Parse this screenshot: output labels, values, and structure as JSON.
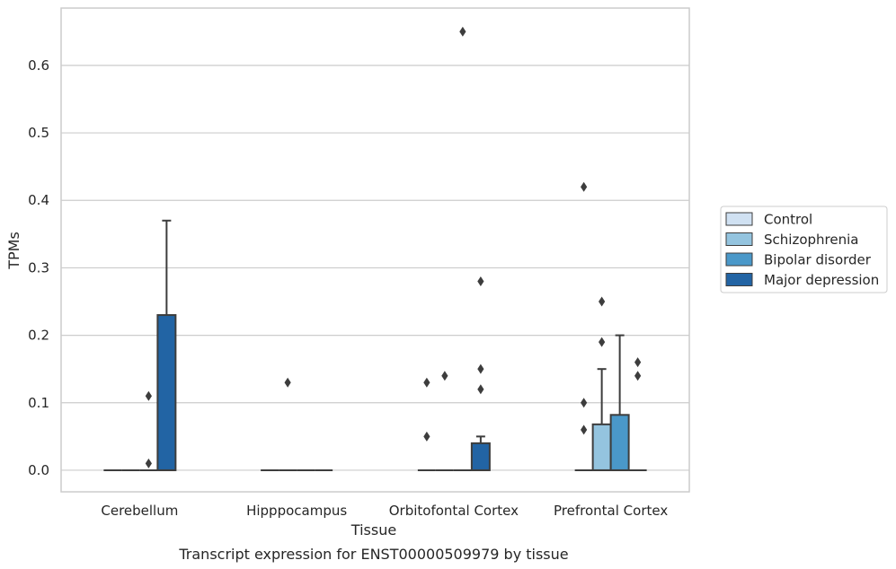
{
  "caption": "Transcript expression for ENST00000509979 by tissue",
  "chart_data": {
    "type": "box",
    "title": "",
    "xlabel": "Tissue",
    "ylabel": "TPMs",
    "ylim": [
      -0.032,
      0.685
    ],
    "yticks": [
      0.0,
      0.1,
      0.2,
      0.3,
      0.4,
      0.5,
      0.6
    ],
    "ytick_labels": [
      "0.0",
      "0.1",
      "0.2",
      "0.3",
      "0.4",
      "0.5",
      "0.6"
    ],
    "grid": true,
    "legend_position": "right",
    "categories": [
      "Cerebellum",
      "Hipppocampus",
      "Orbitofontal Cortex",
      "Prefrontal Cortex"
    ],
    "series": [
      {
        "name": "Control",
        "color": "#d0e1f2",
        "boxes": [
          {
            "q1": 0,
            "median": 0,
            "q3": 0,
            "whisker_low": 0,
            "whisker_high": 0,
            "outliers": []
          },
          {
            "q1": 0,
            "median": 0,
            "q3": 0,
            "whisker_low": 0,
            "whisker_high": 0,
            "outliers": []
          },
          {
            "q1": 0,
            "median": 0,
            "q3": 0,
            "whisker_low": 0,
            "whisker_high": 0,
            "outliers": [
              0.13,
              0.05
            ]
          },
          {
            "q1": 0,
            "median": 0,
            "q3": 0,
            "whisker_low": 0,
            "whisker_high": 0,
            "outliers": [
              0.42,
              0.1,
              0.06
            ]
          }
        ]
      },
      {
        "name": "Schizophrenia",
        "color": "#94c4df",
        "boxes": [
          {
            "q1": 0,
            "median": 0,
            "q3": 0,
            "whisker_low": 0,
            "whisker_high": 0,
            "outliers": []
          },
          {
            "q1": 0,
            "median": 0,
            "q3": 0,
            "whisker_low": 0,
            "whisker_high": 0,
            "outliers": [
              0.13
            ]
          },
          {
            "q1": 0,
            "median": 0,
            "q3": 0,
            "whisker_low": 0,
            "whisker_high": 0,
            "outliers": [
              0.14
            ]
          },
          {
            "q1": 0,
            "median": 0,
            "q3": 0.068,
            "whisker_low": 0,
            "whisker_high": 0.15,
            "outliers": [
              0.25,
              0.19
            ]
          }
        ]
      },
      {
        "name": "Bipolar disorder",
        "color": "#4a98c9",
        "boxes": [
          {
            "q1": 0,
            "median": 0,
            "q3": 0,
            "whisker_low": 0,
            "whisker_high": 0,
            "outliers": [
              0.11,
              0.01
            ]
          },
          {
            "q1": 0,
            "median": 0,
            "q3": 0,
            "whisker_low": 0,
            "whisker_high": 0,
            "outliers": []
          },
          {
            "q1": 0,
            "median": 0,
            "q3": 0,
            "whisker_low": 0,
            "whisker_high": 0,
            "outliers": [
              0.65
            ]
          },
          {
            "q1": 0,
            "median": 0,
            "q3": 0.082,
            "whisker_low": 0,
            "whisker_high": 0.2,
            "outliers": []
          }
        ]
      },
      {
        "name": "Major depression",
        "color": "#2264a4",
        "boxes": [
          {
            "q1": 0,
            "median": 0,
            "q3": 0.23,
            "whisker_low": 0,
            "whisker_high": 0.37,
            "outliers": []
          },
          {
            "q1": 0,
            "median": 0,
            "q3": 0,
            "whisker_low": 0,
            "whisker_high": 0,
            "outliers": []
          },
          {
            "q1": 0,
            "median": 0,
            "q3": 0.04,
            "whisker_low": 0,
            "whisker_high": 0.05,
            "outliers": [
              0.28,
              0.15,
              0.12
            ]
          },
          {
            "q1": 0,
            "median": 0,
            "q3": 0,
            "whisker_low": 0,
            "whisker_high": 0,
            "outliers": [
              0.16,
              0.14
            ]
          }
        ]
      }
    ]
  }
}
